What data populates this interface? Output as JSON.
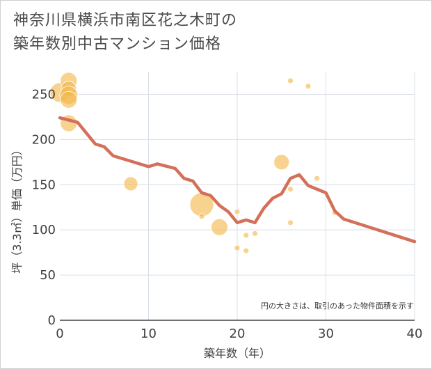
{
  "chart_data": {
    "type": "scatter",
    "title_lines": [
      "神奈川県横浜市南区花之木町の",
      "築年数別中古マンション価格"
    ],
    "xlabel": "築年数（年）",
    "ylabel": "坪（3.3㎡）単価（万円）",
    "note": "円の大きさは、取引のあった物件面積を示す",
    "xlim": [
      0,
      40
    ],
    "ylim": [
      0,
      275
    ],
    "xticks": [
      0,
      10,
      20,
      30,
      40
    ],
    "yticks": [
      0,
      50,
      100,
      150,
      200,
      250
    ],
    "grid": true,
    "colors": {
      "bubble": "#f2b84b",
      "line": "#d4705a"
    },
    "bubbles": [
      {
        "x": 0,
        "y": 252,
        "size": 14
      },
      {
        "x": 1,
        "y": 265,
        "size": 12
      },
      {
        "x": 1,
        "y": 256,
        "size": 11
      },
      {
        "x": 1,
        "y": 249,
        "size": 13
      },
      {
        "x": 1,
        "y": 244,
        "size": 12
      },
      {
        "x": 1,
        "y": 218,
        "size": 12
      },
      {
        "x": 8,
        "y": 151,
        "size": 10
      },
      {
        "x": 16,
        "y": 128,
        "size": 17
      },
      {
        "x": 16,
        "y": 115,
        "size": 4
      },
      {
        "x": 18,
        "y": 103,
        "size": 12
      },
      {
        "x": 20,
        "y": 120,
        "size": 4
      },
      {
        "x": 20,
        "y": 80,
        "size": 4
      },
      {
        "x": 21,
        "y": 94,
        "size": 4
      },
      {
        "x": 21,
        "y": 77,
        "size": 4
      },
      {
        "x": 22,
        "y": 96,
        "size": 4
      },
      {
        "x": 25,
        "y": 175,
        "size": 11
      },
      {
        "x": 26,
        "y": 265,
        "size": 4
      },
      {
        "x": 26,
        "y": 145,
        "size": 4
      },
      {
        "x": 26,
        "y": 108,
        "size": 4
      },
      {
        "x": 28,
        "y": 259,
        "size": 4
      },
      {
        "x": 29,
        "y": 157,
        "size": 4
      },
      {
        "x": 31,
        "y": 119,
        "size": 4
      }
    ],
    "trend": {
      "x": [
        0,
        2,
        4,
        5,
        6,
        8,
        10,
        11,
        13,
        14,
        15,
        16,
        17,
        18,
        19,
        20,
        21,
        22,
        23,
        24,
        25,
        26,
        27,
        28,
        29,
        30,
        31,
        32,
        40
      ],
      "y": [
        224,
        219,
        195,
        192,
        182,
        176,
        170,
        173,
        168,
        157,
        154,
        141,
        138,
        127,
        120,
        108,
        111,
        108,
        124,
        135,
        140,
        157,
        161,
        149,
        145,
        141,
        121,
        112,
        87
      ]
    }
  }
}
